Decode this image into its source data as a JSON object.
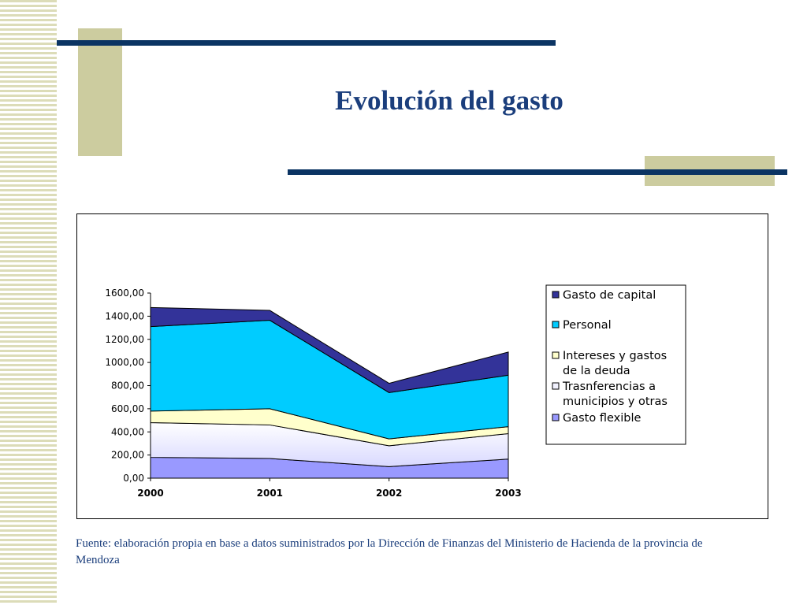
{
  "slide": {
    "title": "Evolución del gasto",
    "source": "Fuente: elaboración propia en base a datos suministrados por la Dirección de Finanzas del Ministerio de Hacienda de la provincia de Mendoza"
  },
  "colors": {
    "navy": "#0b3463",
    "tan": "#cccc9f",
    "title": "#1b3e7c"
  },
  "chart_data": {
    "type": "area",
    "stacked": true,
    "categories": [
      "2000",
      "2001",
      "2002",
      "2003"
    ],
    "ylim": [
      0,
      1600
    ],
    "yticks": [
      "0,00",
      "200,00",
      "400,00",
      "600,00",
      "800,00",
      "1000,00",
      "1200,00",
      "1400,00",
      "1600,00"
    ],
    "xlabel": "",
    "ylabel": "",
    "legend_position": "right",
    "grid": false,
    "series": [
      {
        "name": "Gasto flexible",
        "values": [
          180,
          170,
          100,
          165
        ],
        "color": "#9999ff"
      },
      {
        "name": "Trasnferencias a municipios y otras",
        "values": [
          300,
          290,
          180,
          220
        ],
        "color": "#f2f2ff"
      },
      {
        "name": "Intereses y gastos de la deuda",
        "values": [
          100,
          140,
          60,
          60
        ],
        "color": "#ffffcc"
      },
      {
        "name": "Personal",
        "values": [
          730,
          765,
          400,
          445
        ],
        "color": "#00ccff"
      },
      {
        "name": "Gasto de capital",
        "values": [
          165,
          85,
          80,
          200
        ],
        "color": "#333399"
      }
    ],
    "legend": [
      {
        "lines": [
          "Gasto de capital"
        ],
        "series": 4
      },
      {
        "lines": [
          "Personal"
        ],
        "series": 3
      },
      {
        "lines": [
          "Intereses y gastos",
          "de la deuda"
        ],
        "series": 2
      },
      {
        "lines": [
          "Trasnferencias a",
          "municipios y otras"
        ],
        "series": 1
      },
      {
        "lines": [
          "Gasto flexible"
        ],
        "series": 0
      }
    ]
  }
}
